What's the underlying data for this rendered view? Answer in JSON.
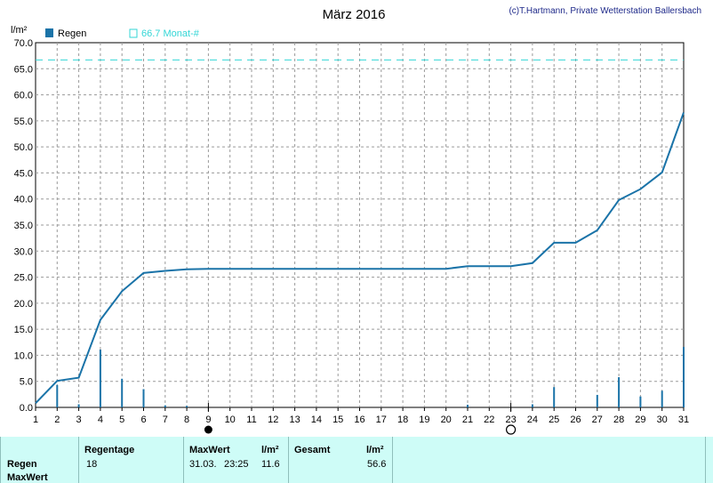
{
  "header": {
    "title": "März 2016",
    "copyright": "(c)T.Hartmann, Private Wetterstation Ballersbach",
    "y_unit": "l/m²"
  },
  "legend": {
    "series_label": "Regen",
    "reference_label": "66.7 Monat-#"
  },
  "colors": {
    "series": "#1a73a8",
    "reference": "#33d6d6",
    "title": "#000000",
    "copyright": "#1f2a8a",
    "footer_bg": "#cefcf7"
  },
  "chart_data": {
    "type": "line",
    "title": "März 2016",
    "ylabel": "l/m²",
    "xlabel": "",
    "xlim": [
      1,
      31
    ],
    "ylim": [
      0,
      70
    ],
    "y_ticks": [
      "0.0",
      "5.0",
      "10.0",
      "15.0",
      "20.0",
      "25.0",
      "30.0",
      "35.0",
      "40.0",
      "45.0",
      "50.0",
      "55.0",
      "60.0",
      "65.0",
      "70.0"
    ],
    "x_ticks": [
      "1",
      "2",
      "3",
      "4",
      "5",
      "6",
      "7",
      "8",
      "9",
      "10",
      "11",
      "12",
      "13",
      "14",
      "15",
      "16",
      "17",
      "18",
      "19",
      "20",
      "21",
      "22",
      "23",
      "24",
      "25",
      "26",
      "27",
      "28",
      "29",
      "30",
      "31"
    ],
    "grid": true,
    "cumulative": {
      "x": [
        1,
        2,
        3,
        4,
        5,
        6,
        7,
        8,
        9,
        10,
        11,
        12,
        13,
        14,
        15,
        16,
        17,
        18,
        19,
        20,
        21,
        22,
        23,
        24,
        25,
        26,
        27,
        28,
        29,
        30,
        31
      ],
      "y": [
        0.8,
        5.1,
        5.7,
        16.8,
        22.3,
        25.8,
        26.2,
        26.5,
        26.6,
        26.6,
        26.6,
        26.6,
        26.6,
        26.6,
        26.6,
        26.6,
        26.6,
        26.6,
        26.6,
        26.6,
        27.1,
        27.1,
        27.1,
        27.7,
        31.6,
        31.6,
        34.0,
        39.8,
        41.9,
        45.1,
        56.6
      ]
    },
    "daily_bars": {
      "x": [
        2,
        3,
        4,
        5,
        6,
        7,
        8,
        21,
        24,
        25,
        27,
        28,
        29,
        30,
        31
      ],
      "y": [
        4.3,
        0.6,
        11.1,
        5.5,
        3.5,
        0.4,
        0.3,
        0.5,
        0.6,
        3.9,
        2.4,
        5.8,
        2.1,
        3.2,
        11.6
      ]
    },
    "reference_line": {
      "name": "66.7 Monat-#",
      "value": 66.7
    },
    "moon_phases": [
      {
        "day": 9,
        "phase": "new"
      },
      {
        "day": 23,
        "phase": "full"
      }
    ]
  },
  "footer": {
    "row_labels": [
      "Regen",
      "MaxWert"
    ],
    "regentage_header": "Regentage",
    "regentage_value": "18",
    "maxwert_header": "MaxWert",
    "maxwert_unit": "l/m²",
    "maxwert_date": "31.03.",
    "maxwert_time": "23:25",
    "maxwert_value": "11.6",
    "gesamt_header": "Gesamt",
    "gesamt_unit": "l/m²",
    "gesamt_value": "56.6"
  }
}
